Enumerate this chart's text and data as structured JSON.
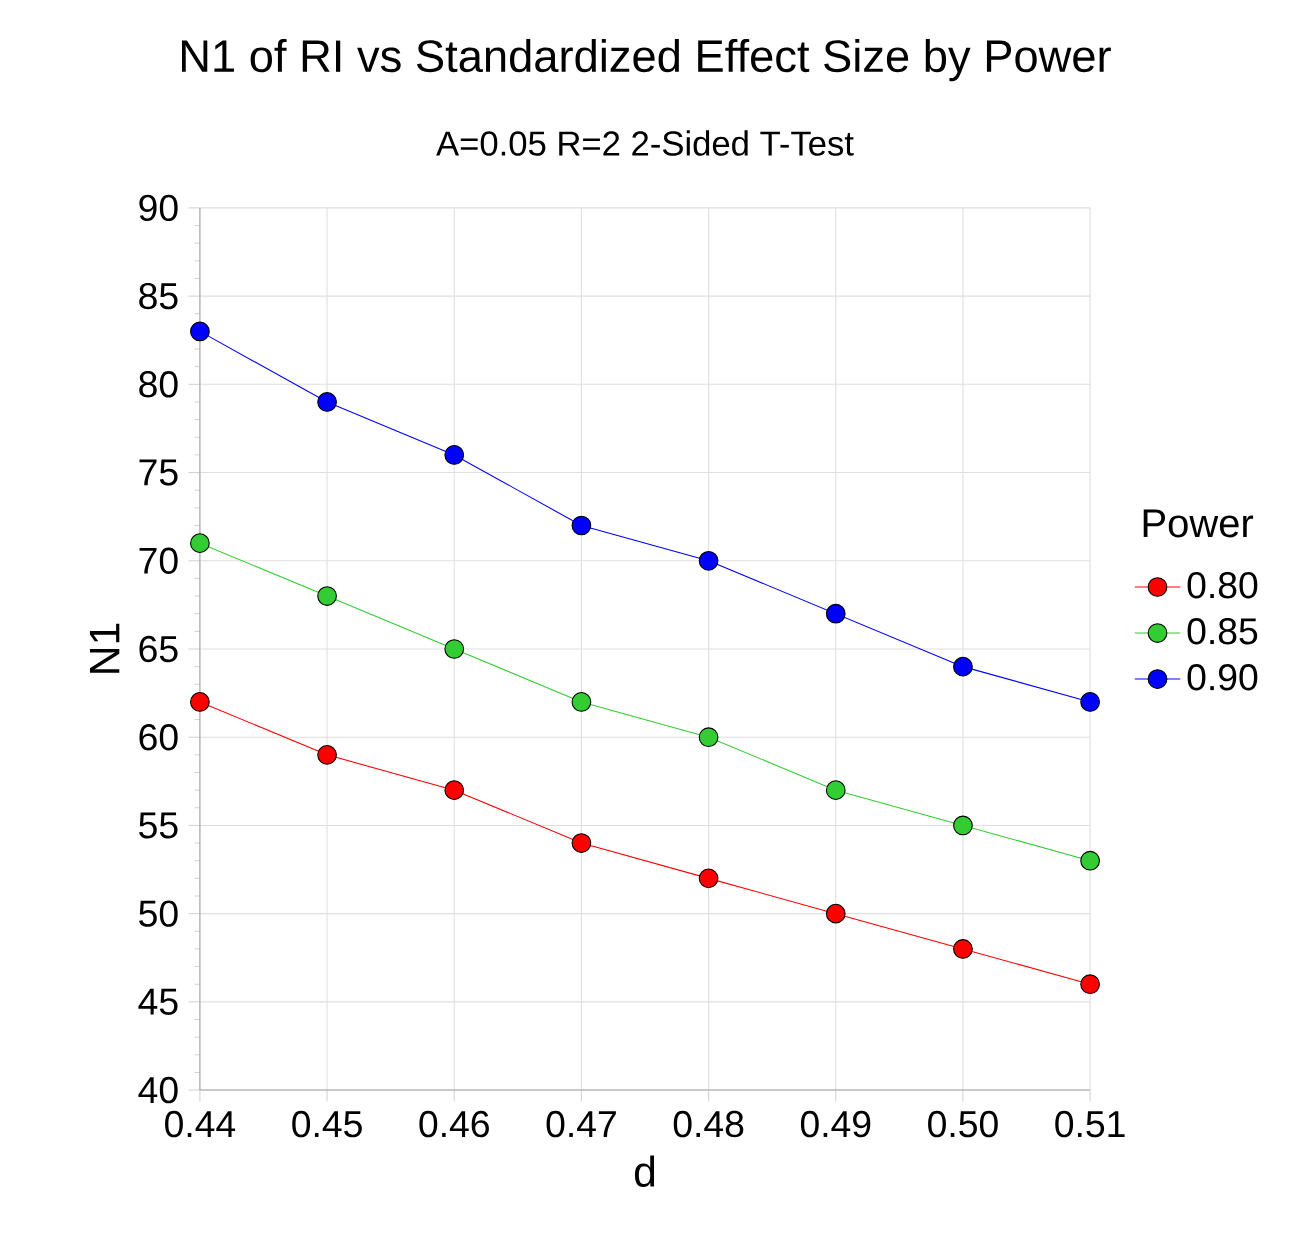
{
  "chart_data": {
    "type": "line",
    "title": "N1 of RI vs Standardized Effect Size by Power",
    "subtitle": "A=0.05 R=2 2-Sided T-Test",
    "xlabel": "d",
    "ylabel": "N1",
    "legend_title": "Power",
    "x": [
      0.44,
      0.45,
      0.46,
      0.47,
      0.48,
      0.49,
      0.5,
      0.51
    ],
    "series": [
      {
        "name": "0.80",
        "color": "#ff0000",
        "values": [
          62,
          59,
          57,
          54,
          52,
          50,
          48,
          46
        ]
      },
      {
        "name": "0.85",
        "color": "#33cc33",
        "values": [
          71,
          68,
          65,
          62,
          60,
          57,
          55,
          53
        ]
      },
      {
        "name": "0.90",
        "color": "#0000ff",
        "values": [
          83,
          79,
          76,
          72,
          70,
          67,
          64,
          62
        ]
      }
    ],
    "xlim": [
      0.44,
      0.51
    ],
    "ylim": [
      40,
      90
    ],
    "xticks": [
      0.44,
      0.45,
      0.46,
      0.47,
      0.48,
      0.49,
      {
        "value": 0.5,
        "label": "0.50"
      },
      0.51
    ],
    "yticks": [
      40,
      45,
      50,
      55,
      60,
      65,
      70,
      75,
      80,
      85,
      90
    ],
    "grid": true,
    "legend": "right",
    "marker": "circle",
    "line_style": "solid"
  }
}
